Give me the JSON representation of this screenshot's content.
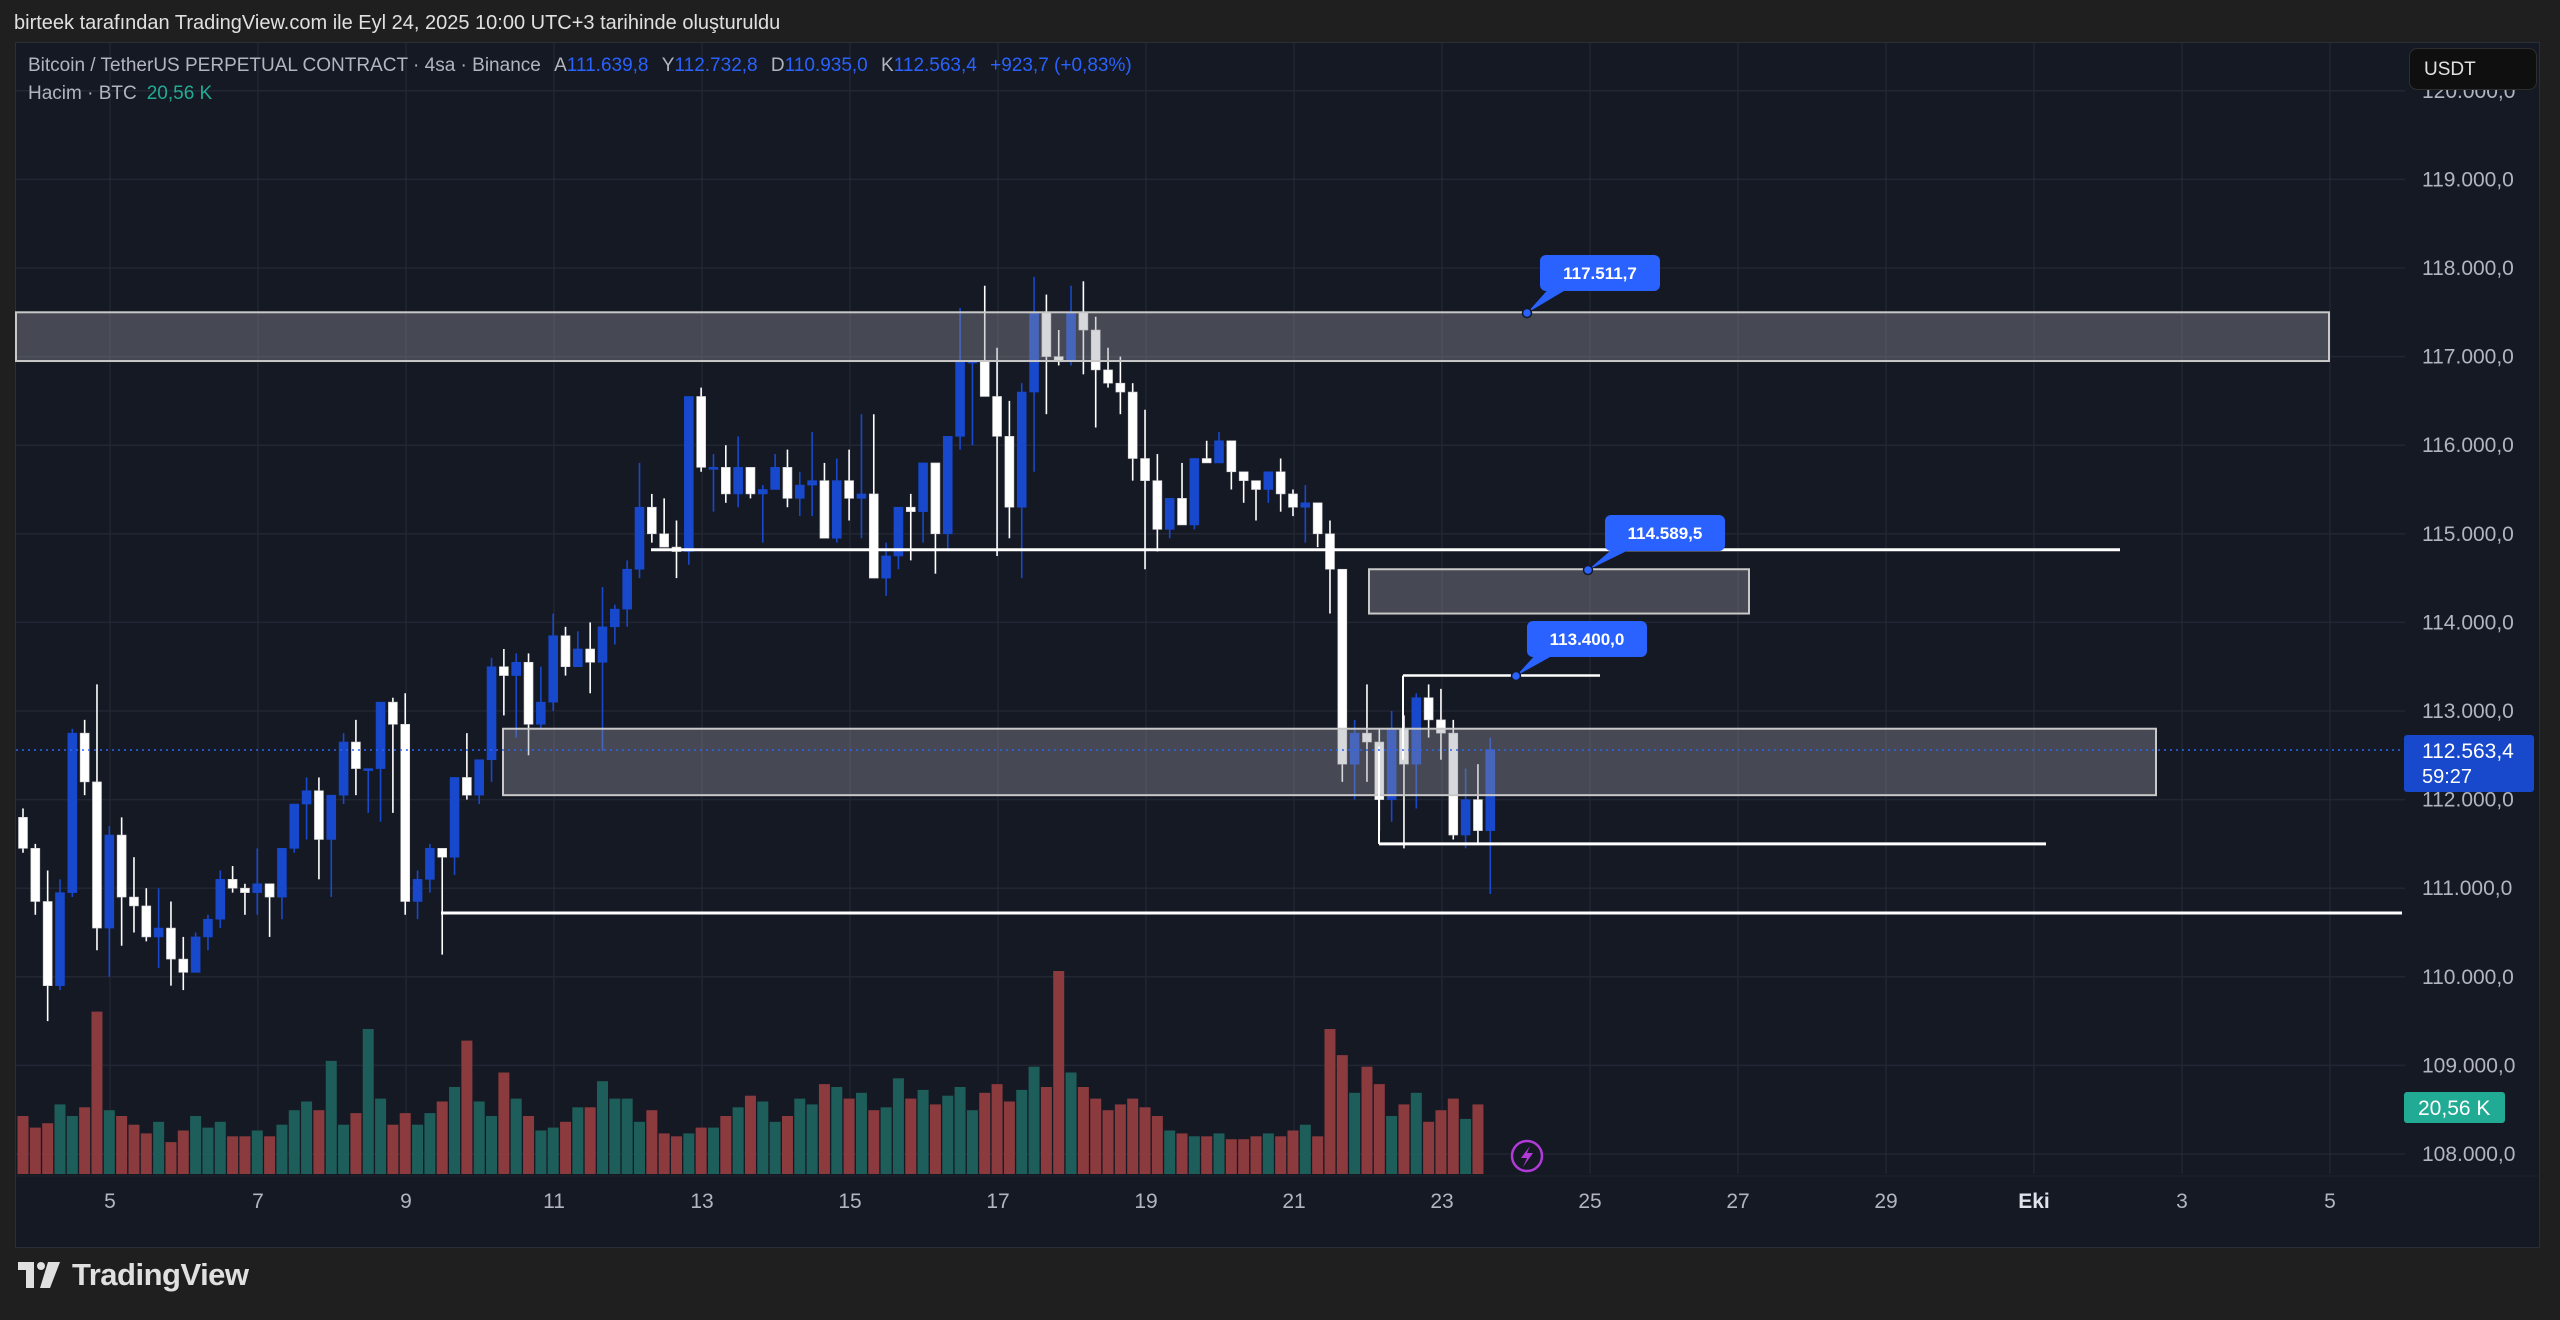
{
  "header": {
    "created_by": "birteek tarafından TradingView.com ile Eyl 24, 2025 10:00 UTC+3 tarihinde oluşturuldu"
  },
  "legend": {
    "symbol": "Bitcoin / TetherUS PERPETUAL CONTRACT · 4sa · Binance",
    "open_label": "A",
    "open": "111.639,8",
    "high_label": "Y",
    "high": "112.732,8",
    "low_label": "D",
    "low": "110.935,0",
    "close_label": "K",
    "close": "112.563,4",
    "change": "+923,7 (+0,83%)",
    "volume_label": "Hacim · BTC",
    "volume_value": "20,56 K"
  },
  "currency_button": "USDT",
  "footer": {
    "brand": "TradingView"
  },
  "colors": {
    "background": "#151924",
    "up_candle": "#1848cc",
    "down_candle": "#ffffff",
    "volume_up": "#1e5e5a",
    "volume_down": "#8b3a3e",
    "accent": "#2962ff",
    "volume_badge": "#22ab94"
  },
  "chart_data": {
    "type": "candlestick",
    "title": "Bitcoin / TetherUS PERPETUAL CONTRACT · 4sa · Binance",
    "ylabel": "USDT",
    "ylim": [
      107800,
      120500
    ],
    "y_ticks": [
      "119.000,0",
      "118.000,0",
      "117.000,0",
      "116.000,0",
      "115.000,0",
      "114.000,0",
      "113.000,0",
      "112.000,0",
      "111.000,0",
      "110.000,0",
      "109.000,0",
      "108.000,0"
    ],
    "y_tick_values": [
      119000,
      118000,
      117000,
      116000,
      115000,
      114000,
      113000,
      112000,
      111000,
      110000,
      109000,
      108000
    ],
    "x_ticks": [
      "5",
      "7",
      "9",
      "11",
      "13",
      "15",
      "17",
      "19",
      "21",
      "23",
      "25",
      "27",
      "29",
      "Eki",
      "3",
      "5"
    ],
    "current_price": "112.563,4",
    "countdown": "59:27",
    "volume_badge": "20,56 K",
    "candles": [
      [
        111800,
        111900,
        111400,
        111450
      ],
      [
        111450,
        111500,
        110700,
        110850
      ],
      [
        110850,
        111200,
        109500,
        109900
      ],
      [
        109900,
        111100,
        109850,
        110950
      ],
      [
        110950,
        112800,
        110900,
        112750
      ],
      [
        112750,
        112900,
        112050,
        112200
      ],
      [
        112200,
        113300,
        110300,
        110550
      ],
      [
        110550,
        111700,
        110000,
        111600
      ],
      [
        111600,
        111800,
        110350,
        110900
      ],
      [
        110900,
        111350,
        110500,
        110800
      ],
      [
        110800,
        111000,
        110400,
        110450
      ],
      [
        110450,
        111000,
        110100,
        110550
      ],
      [
        110550,
        110850,
        109900,
        110200
      ],
      [
        110200,
        110450,
        109850,
        110050
      ],
      [
        110050,
        110500,
        110050,
        110450
      ],
      [
        110450,
        110700,
        110300,
        110650
      ],
      [
        110650,
        111200,
        110550,
        111100
      ],
      [
        111100,
        111250,
        110950,
        111000
      ],
      [
        111000,
        111050,
        110700,
        110950
      ],
      [
        110950,
        111450,
        110700,
        111050
      ],
      [
        111050,
        110950,
        110450,
        110900
      ],
      [
        110900,
        111350,
        110650,
        111450
      ],
      [
        111450,
        111950,
        111400,
        111950
      ],
      [
        111950,
        112250,
        111550,
        112100
      ],
      [
        112100,
        112250,
        111100,
        111550
      ],
      [
        111550,
        112000,
        110900,
        112050
      ],
      [
        112050,
        112750,
        111950,
        112650
      ],
      [
        112650,
        112900,
        112050,
        112350
      ],
      [
        112350,
        112350,
        111850,
        112350
      ],
      [
        112350,
        113050,
        111750,
        113100
      ],
      [
        113100,
        113150,
        111850,
        112850
      ],
      [
        112850,
        113200,
        110700,
        110850
      ],
      [
        110850,
        111200,
        110650,
        111100
      ],
      [
        111100,
        111500,
        110950,
        111450
      ],
      [
        111450,
        111350,
        110250,
        111350
      ],
      [
        111350,
        112250,
        111150,
        112250
      ],
      [
        112250,
        112750,
        112000,
        112050
      ],
      [
        112050,
        112350,
        111950,
        112450
      ],
      [
        112450,
        113600,
        112200,
        113500
      ],
      [
        113500,
        113700,
        112950,
        113400
      ],
      [
        113400,
        113650,
        112700,
        113550
      ],
      [
        113550,
        113650,
        112500,
        112850
      ],
      [
        112850,
        113500,
        112800,
        113100
      ],
      [
        113100,
        114100,
        113000,
        113850
      ],
      [
        113850,
        113950,
        113400,
        113500
      ],
      [
        113500,
        113900,
        113500,
        113700
      ],
      [
        113700,
        114000,
        113200,
        113550
      ],
      [
        113550,
        114400,
        112550,
        113950
      ],
      [
        113950,
        114200,
        113750,
        114150
      ],
      [
        114150,
        114700,
        113950,
        114600
      ],
      [
        114600,
        115800,
        114500,
        115300
      ],
      [
        115300,
        115450,
        114900,
        115000
      ],
      [
        115000,
        115400,
        114900,
        114850
      ],
      [
        114850,
        115150,
        114500,
        114800
      ],
      [
        114800,
        116550,
        114650,
        116550
      ],
      [
        116550,
        116650,
        115700,
        115750
      ],
      [
        115750,
        115900,
        115250,
        115750
      ],
      [
        115750,
        116000,
        115350,
        115450
      ],
      [
        115450,
        116100,
        115300,
        115750
      ],
      [
        115750,
        115750,
        115400,
        115450
      ],
      [
        115450,
        115550,
        114900,
        115500
      ],
      [
        115500,
        115900,
        115500,
        115750
      ],
      [
        115750,
        115950,
        115300,
        115400
      ],
      [
        115400,
        115700,
        115200,
        115550
      ],
      [
        115550,
        116150,
        115200,
        115600
      ],
      [
        115600,
        115800,
        114950,
        114950
      ],
      [
        114950,
        115850,
        114900,
        115600
      ],
      [
        115600,
        115950,
        115150,
        115400
      ],
      [
        115400,
        116350,
        114950,
        115450
      ],
      [
        115450,
        116350,
        114600,
        114500
      ],
      [
        114500,
        114900,
        114300,
        114750
      ],
      [
        114750,
        115300,
        114600,
        115300
      ],
      [
        115300,
        115450,
        114700,
        115250
      ],
      [
        115250,
        115800,
        114900,
        115800
      ],
      [
        115800,
        115650,
        114550,
        115000
      ],
      [
        115000,
        116100,
        114800,
        116100
      ],
      [
        116100,
        117550,
        115950,
        116950
      ],
      [
        116950,
        116900,
        116000,
        116950
      ],
      [
        116950,
        117800,
        117300,
        116550
      ],
      [
        116550,
        117100,
        114750,
        116100
      ],
      [
        116100,
        116500,
        114950,
        115300
      ],
      [
        115300,
        116700,
        114500,
        116600
      ],
      [
        116600,
        117900,
        115700,
        117500
      ],
      [
        117500,
        117700,
        116350,
        117000
      ],
      [
        117000,
        117300,
        116900,
        116950
      ],
      [
        116950,
        117800,
        116900,
        117500
      ],
      [
        117500,
        117850,
        116800,
        117300
      ],
      [
        117300,
        117450,
        116200,
        116850
      ],
      [
        116850,
        117100,
        116650,
        116700
      ],
      [
        116700,
        117000,
        116350,
        116600
      ],
      [
        116600,
        116700,
        115600,
        115850
      ],
      [
        115850,
        116400,
        114600,
        115600
      ],
      [
        115600,
        115900,
        114800,
        115050
      ],
      [
        115050,
        115150,
        114950,
        115400
      ],
      [
        115400,
        115800,
        115350,
        115100
      ],
      [
        115100,
        115700,
        115050,
        115850
      ],
      [
        115850,
        116050,
        115850,
        115800
      ],
      [
        115800,
        116150,
        115800,
        116050
      ],
      [
        116050,
        116050,
        115500,
        115700
      ],
      [
        115700,
        115650,
        115350,
        115600
      ],
      [
        115600,
        115500,
        115150,
        115500
      ],
      [
        115500,
        115650,
        115350,
        115700
      ],
      [
        115700,
        115850,
        115250,
        115450
      ],
      [
        115450,
        115500,
        115200,
        115300
      ],
      [
        115300,
        115550,
        114900,
        115350
      ],
      [
        115350,
        115350,
        114850,
        115000
      ],
      [
        115000,
        115150,
        114100,
        114600
      ],
      [
        114600,
        114600,
        112200,
        112400
      ],
      [
        112400,
        112900,
        112000,
        112750
      ],
      [
        112750,
        113300,
        112200,
        112650
      ],
      [
        112650,
        112800,
        111650,
        112000
      ],
      [
        112000,
        113000,
        111750,
        112800
      ],
      [
        112800,
        112950,
        111450,
        112400
      ],
      [
        112400,
        113200,
        111900,
        113150
      ],
      [
        113150,
        113300,
        112700,
        112900
      ],
      [
        112900,
        113250,
        112450,
        112750
      ],
      [
        112750,
        112900,
        111550,
        111600
      ],
      [
        111600,
        112350,
        111450,
        112000
      ],
      [
        112000,
        112400,
        111500,
        111650
      ],
      [
        111650,
        112700,
        110935,
        112563
      ]
    ],
    "volumes": [
      40,
      32,
      35,
      48,
      40,
      46,
      112,
      44,
      40,
      34,
      28,
      36,
      22,
      30,
      40,
      32,
      36,
      26,
      26,
      30,
      26,
      34,
      44,
      50,
      44,
      78,
      34,
      42,
      100,
      52,
      34,
      42,
      34,
      42,
      50,
      60,
      92,
      50,
      40,
      70,
      52,
      40,
      30,
      32,
      36,
      46,
      46,
      64,
      52,
      52,
      36,
      44,
      28,
      26,
      28,
      32,
      32,
      40,
      46,
      54,
      50,
      36,
      40,
      52,
      48,
      62,
      60,
      52,
      56,
      44,
      46,
      66,
      52,
      58,
      48,
      54,
      60,
      44,
      56,
      62,
      50,
      58,
      74,
      60,
      140,
      70,
      60,
      52,
      44,
      48,
      52,
      46,
      40,
      30,
      28,
      26,
      26,
      28,
      24,
      24,
      26,
      28,
      26,
      30,
      34,
      26,
      100,
      82,
      56,
      74,
      62,
      40,
      48,
      56,
      36,
      44,
      52,
      38,
      48
    ]
  },
  "drawings": {
    "upper_zone": {
      "from": 116950,
      "to": 117500
    },
    "middle_zone": {
      "from": 114100,
      "to": 114600
    },
    "lower_zone": {
      "from": 112050,
      "to": 112800
    },
    "resistance_line": 114820,
    "small_line": 113400,
    "range_low_line": 111500,
    "support_line": 110720,
    "callouts": [
      "117.511,7",
      "114.589,5",
      "113.400,0"
    ]
  }
}
